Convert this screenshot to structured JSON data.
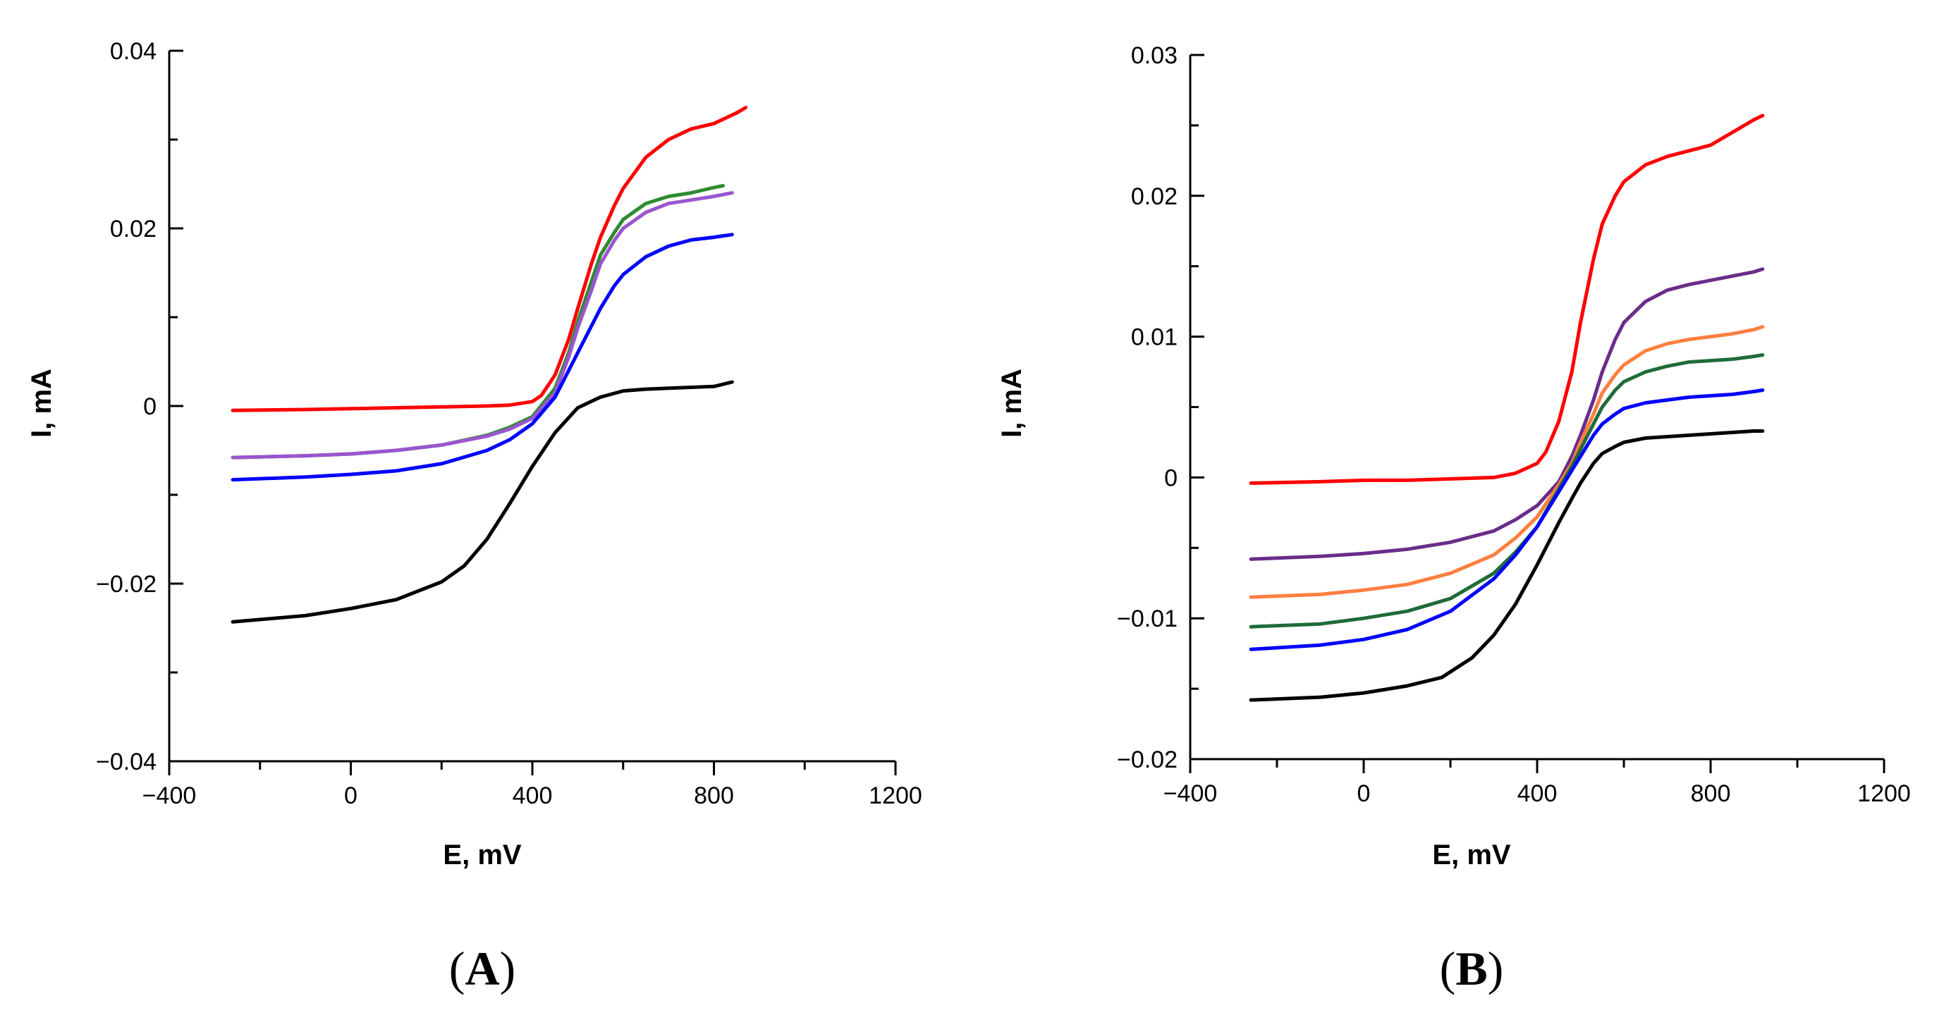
{
  "chart_data": [
    {
      "type": "line",
      "panel_label": "A",
      "xlabel": "E, mV",
      "ylabel": "I, mA",
      "xlim": [
        -400,
        1200
      ],
      "ylim": [
        -0.04,
        0.04
      ],
      "x_ticks": [
        -400,
        0,
        400,
        800,
        1200
      ],
      "x_tick_labels": [
        "−400",
        "0",
        "400",
        "800",
        "1200"
      ],
      "y_ticks": [
        -0.04,
        -0.02,
        0,
        0.02,
        0.04
      ],
      "y_tick_labels": [
        "−0.04",
        "−0.02",
        "0",
        "0.02",
        "0.04"
      ],
      "x_minor_step": 200,
      "y_minor_step": 0.01,
      "grid": false,
      "series": [
        {
          "color": "#ff0000",
          "x": [
            -260,
            -100,
            0,
            100,
            200,
            300,
            350,
            400,
            420,
            450,
            480,
            500,
            530,
            550,
            580,
            600,
            650,
            700,
            750,
            800,
            850,
            870
          ],
          "y": [
            -0.0005,
            -0.0004,
            -0.0003,
            -0.0002,
            -0.0001,
            0.0,
            0.0001,
            0.0005,
            0.0012,
            0.0035,
            0.0075,
            0.011,
            0.016,
            0.019,
            0.0225,
            0.0245,
            0.028,
            0.03,
            0.0312,
            0.0318,
            0.033,
            0.0336
          ]
        },
        {
          "color": "#2e8b2e",
          "x": [
            -260,
            -100,
            0,
            100,
            200,
            300,
            350,
            400,
            450,
            480,
            500,
            530,
            550,
            580,
            600,
            650,
            700,
            750,
            800,
            820
          ],
          "y": [
            -0.0058,
            -0.0056,
            -0.0054,
            -0.005,
            -0.0044,
            -0.0033,
            -0.0024,
            -0.0012,
            0.002,
            0.006,
            0.0095,
            0.014,
            0.017,
            0.0195,
            0.021,
            0.0228,
            0.0236,
            0.024,
            0.0246,
            0.0248
          ]
        },
        {
          "color": "#9a55d0",
          "x": [
            -260,
            -100,
            0,
            100,
            200,
            300,
            350,
            400,
            450,
            480,
            500,
            530,
            550,
            580,
            600,
            650,
            700,
            750,
            800,
            840
          ],
          "y": [
            -0.0058,
            -0.0056,
            -0.0054,
            -0.005,
            -0.0044,
            -0.0034,
            -0.0026,
            -0.0014,
            0.0015,
            0.0055,
            0.0088,
            0.013,
            0.016,
            0.0186,
            0.02,
            0.0218,
            0.0228,
            0.0232,
            0.0236,
            0.024
          ]
        },
        {
          "color": "#0000ff",
          "x": [
            -260,
            -100,
            0,
            100,
            200,
            300,
            350,
            400,
            450,
            500,
            530,
            550,
            580,
            600,
            650,
            700,
            750,
            800,
            840
          ],
          "y": [
            -0.0083,
            -0.008,
            -0.0077,
            -0.0073,
            -0.0065,
            -0.005,
            -0.0038,
            -0.002,
            0.001,
            0.006,
            0.009,
            0.011,
            0.0135,
            0.0148,
            0.0168,
            0.018,
            0.0187,
            0.019,
            0.0193
          ]
        },
        {
          "color": "#000000",
          "x": [
            -260,
            -100,
            0,
            100,
            200,
            250,
            300,
            350,
            400,
            450,
            500,
            550,
            600,
            650,
            700,
            750,
            800,
            840
          ],
          "y": [
            -0.0243,
            -0.0236,
            -0.0228,
            -0.0218,
            -0.0198,
            -0.018,
            -0.015,
            -0.011,
            -0.0068,
            -0.003,
            -0.0002,
            0.001,
            0.0017,
            0.0019,
            0.002,
            0.0021,
            0.0022,
            0.0027
          ]
        }
      ]
    },
    {
      "type": "line",
      "panel_label": "B",
      "xlabel": "E, mV",
      "ylabel": "I, mA",
      "xlim": [
        -400,
        1200
      ],
      "ylim": [
        -0.02,
        0.03
      ],
      "x_ticks": [
        -400,
        0,
        400,
        800,
        1200
      ],
      "x_tick_labels": [
        "−400",
        "0",
        "400",
        "800",
        "1200"
      ],
      "y_ticks": [
        -0.02,
        -0.01,
        0,
        0.01,
        0.02,
        0.03
      ],
      "y_tick_labels": [
        "−0.02",
        "−0.01",
        "0",
        "0.01",
        "0.02",
        "0.03"
      ],
      "x_minor_step": 200,
      "y_minor_step": 0.005,
      "grid": false,
      "series": [
        {
          "color": "#ff0000",
          "x": [
            -260,
            -100,
            0,
            100,
            200,
            300,
            350,
            400,
            420,
            450,
            480,
            500,
            530,
            550,
            580,
            600,
            650,
            700,
            750,
            800,
            850,
            900,
            920
          ],
          "y": [
            -0.0004,
            -0.0003,
            -0.0002,
            -0.0002,
            -0.0001,
            0.0,
            0.0003,
            0.001,
            0.0018,
            0.004,
            0.0075,
            0.011,
            0.0155,
            0.018,
            0.02,
            0.021,
            0.0222,
            0.0228,
            0.0232,
            0.0236,
            0.0245,
            0.0254,
            0.0257
          ]
        },
        {
          "color": "#6a2c8a",
          "x": [
            -260,
            -100,
            0,
            100,
            200,
            300,
            350,
            400,
            450,
            480,
            500,
            530,
            550,
            580,
            600,
            650,
            700,
            750,
            800,
            850,
            900,
            920
          ],
          "y": [
            -0.0058,
            -0.0056,
            -0.0054,
            -0.0051,
            -0.0046,
            -0.0038,
            -0.003,
            -0.002,
            -0.0003,
            0.0015,
            0.003,
            0.0055,
            0.0075,
            0.0098,
            0.011,
            0.0125,
            0.0133,
            0.0137,
            0.014,
            0.0143,
            0.0146,
            0.0148
          ]
        },
        {
          "color": "#ff7f40",
          "x": [
            -260,
            -100,
            0,
            100,
            200,
            300,
            350,
            400,
            450,
            480,
            500,
            530,
            550,
            580,
            600,
            650,
            700,
            750,
            800,
            850,
            900,
            920
          ],
          "y": [
            -0.0085,
            -0.0083,
            -0.008,
            -0.0076,
            -0.0068,
            -0.0055,
            -0.0043,
            -0.0028,
            -0.0005,
            0.001,
            0.0025,
            0.0045,
            0.006,
            0.0073,
            0.008,
            0.009,
            0.0095,
            0.0098,
            0.01,
            0.0102,
            0.0105,
            0.0107
          ]
        },
        {
          "color": "#1f6b3a",
          "x": [
            -260,
            -100,
            0,
            100,
            200,
            300,
            350,
            400,
            450,
            480,
            500,
            530,
            550,
            580,
            600,
            650,
            700,
            750,
            800,
            850,
            900,
            920
          ],
          "y": [
            -0.0106,
            -0.0104,
            -0.01,
            -0.0095,
            -0.0086,
            -0.0068,
            -0.0053,
            -0.0035,
            -0.0008,
            0.0008,
            0.002,
            0.0038,
            0.005,
            0.0062,
            0.0068,
            0.0075,
            0.0079,
            0.0082,
            0.0083,
            0.0084,
            0.0086,
            0.0087
          ]
        },
        {
          "color": "#0000ff",
          "x": [
            -260,
            -100,
            0,
            100,
            200,
            300,
            350,
            400,
            450,
            480,
            500,
            530,
            550,
            580,
            600,
            650,
            700,
            750,
            800,
            850,
            900,
            920
          ],
          "y": [
            -0.0122,
            -0.0119,
            -0.0115,
            -0.0108,
            -0.0095,
            -0.0072,
            -0.0055,
            -0.0035,
            -0.001,
            0.0005,
            0.0015,
            0.003,
            0.0038,
            0.0045,
            0.0049,
            0.0053,
            0.0055,
            0.0057,
            0.0058,
            0.0059,
            0.0061,
            0.0062
          ]
        },
        {
          "color": "#000000",
          "x": [
            -260,
            -100,
            0,
            100,
            180,
            250,
            300,
            350,
            400,
            450,
            480,
            500,
            530,
            550,
            580,
            600,
            650,
            700,
            750,
            800,
            850,
            900,
            920
          ],
          "y": [
            -0.0158,
            -0.0156,
            -0.0153,
            -0.0148,
            -0.0142,
            -0.0128,
            -0.0112,
            -0.009,
            -0.0062,
            -0.0032,
            -0.0015,
            -0.0004,
            0.001,
            0.0017,
            0.0022,
            0.0025,
            0.0028,
            0.0029,
            0.003,
            0.0031,
            0.0032,
            0.0033,
            0.0033
          ]
        }
      ]
    }
  ]
}
